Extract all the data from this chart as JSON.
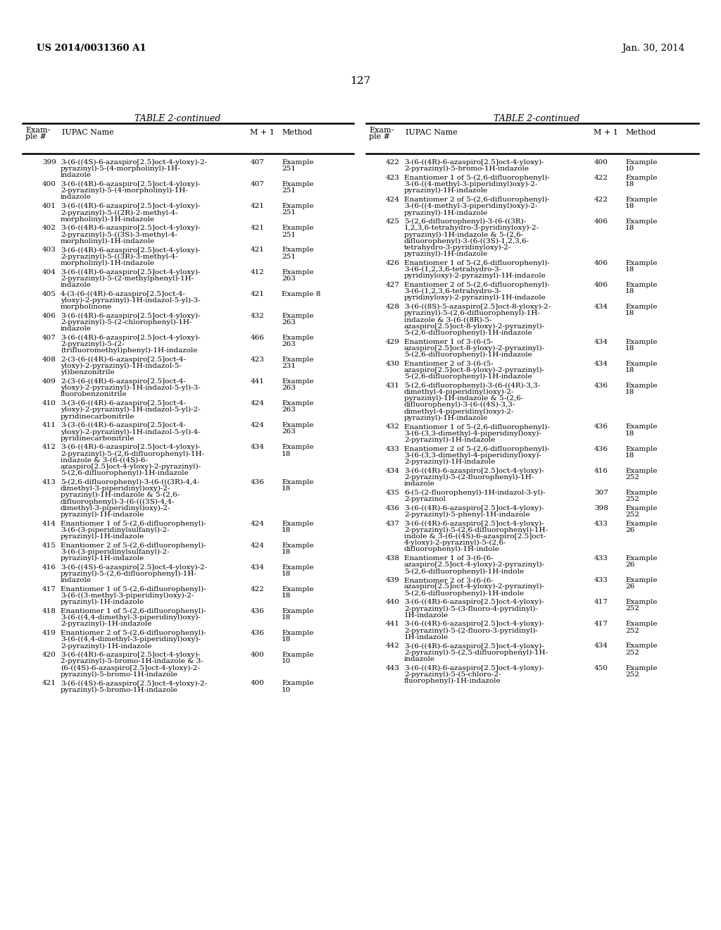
{
  "header_left": "US 2014/0031360 A1",
  "header_right": "Jan. 30, 2014",
  "page_number": "127",
  "table_title": "TABLE 2-continued",
  "left_table": [
    [
      "399",
      "3-(6-((4S)-6-azaspiro[2.5]oct-4-yloxy)-2-\npyrazinyl)-5-(4-morpholinyl)-1H-\nindazole",
      "407",
      "Example\n251"
    ],
    [
      "400",
      "3-(6-((4R)-6-azaspiro[2.5]oct-4-yloxy)-\n2-pyrazinyl)-5-(4-morpholinyl)-1H-\nindazole",
      "407",
      "Example\n251"
    ],
    [
      "401",
      "3-(6-((4R)-6-azaspiro[2.5]oct-4-yloxy)-\n2-pyrazinyl)-5-((2R)-2-methyl-4-\nmorpholinyl)-1H-indazole",
      "421",
      "Example\n251"
    ],
    [
      "402",
      "3-(6-((4R)-6-azaspiro[2.5]oct-4-yloxy)-\n2-pyrazinyl)-5-((3S)-3-methyl-4-\nmorpholinyl)-1H-indazole",
      "421",
      "Example\n251"
    ],
    [
      "403",
      "3-(6-((4R)-6-azaspiro[2.5]oct-4-yloxy)-\n2-pyrazinyl)-5-((3R)-3-methyl-4-\nmorpholinyl)-1H-indazole",
      "421",
      "Example\n251"
    ],
    [
      "404",
      "3-(6-((4R)-6-azaspiro[2.5]oct-4-yloxy)-\n2-pyrazinyl)-5-(2-methylphenyl)-1H-\nindazole",
      "412",
      "Example\n263"
    ],
    [
      "405",
      "4-(3-(6-((4R)-6-azaspiro[2.5]oct-4-\nyloxy)-2-pyrazinyl)-1H-indazol-5-yl)-3-\nmorpholinone",
      "421",
      "Example 8"
    ],
    [
      "406",
      "3-(6-((4R)-6-azaspiro[2.5]oct-4-yloxy)-\n2-pyrazinyl)-5-(2-chlorophenyl)-1H-\nindazole",
      "432",
      "Example\n263"
    ],
    [
      "407",
      "3-(6-((4R)-6-azaspiro[2.5]oct-4-yloxy)-\n2-pyrazinyl)-5-(2-\n(trifluoromethyl)phenyl)-1H-indazole",
      "466",
      "Example\n263"
    ],
    [
      "408",
      "2-(3-(6-((4R)-6-azaspiro[2.5]oct-4-\nyloxy)-2-pyrazinyl)-1H-indazol-5-\nyl)benzonitrile",
      "423",
      "Example\n231"
    ],
    [
      "409",
      "2-(3-(6-((4R)-6-azaspiro[2.5]oct-4-\nyloxy)-2-pyrazinyl)-1H-indazol-5-yl)-3-\nfluorobenzonitrile",
      "441",
      "Example\n263"
    ],
    [
      "410",
      "3-(3-(6-((4R)-6-azaspiro[2.5]oct-4-\nyloxy)-2-pyrazinyl)-1H-indazol-5-yl)-2-\npyridinecarbonitrile",
      "424",
      "Example\n263"
    ],
    [
      "411",
      "3-(3-(6-((4R)-6-azaspiro[2.5]oct-4-\nyloxy)-2-pyrazinyl)-1H-indazol-5-yl)-4-\npyridinecarbonitrile",
      "424",
      "Example\n263"
    ],
    [
      "412",
      "3-(6-((4R)-6-azaspiro[2.5]oct-4-yloxy)-\n2-pyrazinyl)-5-(2,6-difluorophenyl)-1H-\nindazole & 3-(6-((4S)-6-\nazaspiro[2.5]oct-4-yloxy)-2-pyrazinyl)-\n5-(2,6-difluorophenyl)-1H-indazole",
      "434",
      "Example\n18"
    ],
    [
      "413",
      "5-(2,6-difluorophenyl)-3-(6-(((3R)-4,4-\ndimethyl-3-piperidinyl)oxy)-2-\npyrazinyl)-1H-indazole & 5-(2,6-\ndifluorophenyl)-3-(6-(((3S)-4,4-\ndimethyl-3-piperidinyl)oxy)-2-\npyrazinyl)-1H-indazole",
      "436",
      "Example\n18"
    ],
    [
      "414",
      "Enantiomer 1 of 5-(2,6-difluorophenyl)-\n3-(6-(3-piperidinylsulfanyl)-2-\npyrazinyl)-1H-indazole",
      "424",
      "Example\n18"
    ],
    [
      "415",
      "Enantiomer 2 of 5-(2,6-difluorophenyl)-\n3-(6-(3-piperidinylsulfanyl)-2-\npyrazinyl)-1H-indazole",
      "424",
      "Example\n18"
    ],
    [
      "416",
      "3-(6-((4S)-6-azaspiro[2.5]oct-4-yloxy)-2-\npyrazinyl)-5-(2,6-difluorophenyl)-1H-\nindazole",
      "434",
      "Example\n18"
    ],
    [
      "417",
      "Enantiomer 1 of 5-(2,6-difluorophenyl)-\n3-(6-((3-methyl-3-piperidinyl)oxy)-2-\npyrazinyl)-1H-indazole",
      "422",
      "Example\n18"
    ],
    [
      "418",
      "Enantiomer 1 of 5-(2,6-difluorophenyl)-\n3-(6-((4,4-dimethyl-3-piperidinyl)oxy)-\n2-pyrazinyl)-1H-indazole",
      "436",
      "Example\n18"
    ],
    [
      "419",
      "Enantiomer 2 of 5-(2,6-difluorophenyl)-\n3-(6-((4,4-dimethyl-3-piperidinyl)oxy)-\n2-pyrazinyl)-1H-indazole",
      "436",
      "Example\n18"
    ],
    [
      "420",
      "3-(6-((4R)-6-azaspiro[2.5]oct-4-yloxy)-\n2-pyrazinyl)-5-bromo-1H-indazole & 3-\n(6-((4S)-6-azaspiro[2.5]oct-4-yloxy)-2-\npyrazinyl)-5-bromo-1H-indazole",
      "400",
      "Example\n10"
    ],
    [
      "421",
      "3-(6-((4S)-6-azaspiro[2.5]oct-4-yloxy)-2-\npyrazinyl)-5-bromo-1H-indazole",
      "400",
      "Example\n10"
    ]
  ],
  "right_table": [
    [
      "422",
      "3-(6-((4R)-6-azaspiro[2.5]oct-4-yloxy)-\n2-pyrazinyl)-5-bromo-1H-indazole",
      "400",
      "Example\n10"
    ],
    [
      "423",
      "Enantiomer 1 of 5-(2,6-difluorophenyl)-\n3-(6-((4-methyl-3-piperidinyl)oxy)-2-\npyrazinyl)-1H-indazole",
      "422",
      "Example\n18"
    ],
    [
      "424",
      "Enantiomer 2 of 5-(2,6-difluorophenyl)-\n3-(6-((4-methyl-3-piperidinyl)oxy)-2-\npyrazinyl)-1H-indazole",
      "422",
      "Example\n18"
    ],
    [
      "425",
      "5-(2,6-difluorophenyl)-3-(6-((3R)-\n1,2,3,6-tetrahydro-3-pyridinyloxy)-2-\npyrazinyl)-1H-indazole & 5-(2,6-\ndifluorophenyl)-3-(6-((3S)-1,2,3,6-\ntetrahydro-3-pyridinyloxy)-2-\npyrazinyl)-1H-indazole",
      "406",
      "Example\n18"
    ],
    [
      "426",
      "Enantiomer 1 of 5-(2,6-difluorophenyl)-\n3-(6-(1,2,3,6-tetrahydro-3-\npyridinyloxy)-2-pyrazinyl)-1H-indazole",
      "406",
      "Example\n18"
    ],
    [
      "427",
      "Enantiomer 2 of 5-(2,6-difluorophenyl)-\n3-(6-(1,2,3,6-tetrahydro-3-\npyridinyloxy)-2-pyrazinyl)-1H-indazole",
      "406",
      "Example\n18"
    ],
    [
      "428",
      "3-(6-((8S)-5-azaspiro[2.5]oct-8-yloxy)-2-\npyrazinyl)-5-(2,6-difluorophenyl)-1H-\nindazole & 3-(6-((8R)-5-\nazaspiro[2.5]oct-8-yloxy)-2-pyrazinyl)-\n5-(2,6-difluorophenyl)-1H-indazole",
      "434",
      "Example\n18"
    ],
    [
      "429",
      "Enantiomer 1 of 3-(6-(5-\nazaspiro[2.5]oct-8-yloxy)-2-pyrazinyl)-\n5-(2,6-difluorophenyl)-1H-indazole",
      "434",
      "Example\n18"
    ],
    [
      "430",
      "Enantiomer 2 of 3-(6-(5-\nazaspiro[2.5]oct-8-yloxy)-2-pyrazinyl)-\n5-(2,6-difluorophenyl)-1H-indazole",
      "434",
      "Example\n18"
    ],
    [
      "431",
      "5-(2,6-difluorophenyl)-3-(6-((4R)-3,3-\ndimethyl-4-piperidinyl)oxy)-2-\npyrazinyl)-1H-indazole & 5-(2,6-\ndifluorophenyl)-3-(6-((4S)-3,3-\ndimethyl-4-piperidinyl)oxy)-2-\npyrazinyl)-1H-indazole",
      "436",
      "Example\n18"
    ],
    [
      "432",
      "Enantiomer 1 of 5-(2,6-difluorophenyl)-\n3-(6-(3,3-dimethyl-4-piperidinyl)oxy)-\n2-pyrazinyl)-1H-indazole",
      "436",
      "Example\n18"
    ],
    [
      "433",
      "Enantiomer 2 of 5-(2,6-difluorophenyl)-\n3-(6-(3,3-dimethyl-4-piperidinyl)oxy)-\n2-pyrazinyl)-1H-indazole",
      "436",
      "Example\n18"
    ],
    [
      "434",
      "3-(6-((4R)-6-azaspiro[2.5]oct-4-yloxy)-\n2-pyrazinyl)-5-(2-fluorophenyl)-1H-\nindazole",
      "416",
      "Example\n252"
    ],
    [
      "435",
      "6-(5-(2-fluorophenyl)-1H-indazol-3-yl)-\n2-pyrazinol",
      "307",
      "Example\n252"
    ],
    [
      "436",
      "3-(6-((4R)-6-azaspiro[2.5]oct-4-yloxy)-\n2-pyrazinyl)-5-phenyl-1H-indazole",
      "398",
      "Example\n252"
    ],
    [
      "437",
      "3-(6-((4R)-6-azaspiro[2.5]oct-4-yloxy)-\n2-pyrazinyl)-5-(2,6-difluorophenyl)-1H-\nindole & 3-(6-((4S)-6-azaspiro[2.5]oct-\n4-yloxy)-2-pyrazinyl)-5-(2,6-\ndifluorophenyl)-1H-indole",
      "433",
      "Example\n26"
    ],
    [
      "438",
      "Enantiomer 1 of 3-(6-(6-\nazaspiro[2.5]oct-4-yloxy)-2-pyrazinyl)-\n5-(2,6-difluorophenyl)-1H-indole",
      "433",
      "Example\n26"
    ],
    [
      "439",
      "Enantiomer 2 of 3-(6-(6-\nazaspiro[2.5]oct-4-yloxy)-2-pyrazinyl)-\n5-(2,6-difluorophenyl)-1H-indole",
      "433",
      "Example\n26"
    ],
    [
      "440",
      "3-(6-((4R)-6-azaspiro[2.5]oct-4-yloxy)-\n2-pyrazinyl)-5-(3-fluoro-4-pyridinyl)-\n1H-indazole",
      "417",
      "Example\n252"
    ],
    [
      "441",
      "3-(6-((4R)-6-azaspiro[2.5]oct-4-yloxy)-\n2-pyrazinyl)-5-(2-fluoro-3-pyridinyl)-\n1H-indazole",
      "417",
      "Example\n252"
    ],
    [
      "442",
      "3-(6-((4R)-6-azaspiro[2.5]oct-4-yloxy)-\n2-pyrazinyl)-5-(2,5-difluorophenyl)-1H-\nindazole",
      "434",
      "Example\n252"
    ],
    [
      "443",
      "3-(6-((4R)-6-azaspiro[2.5]oct-4-yloxy)-\n2-pyrazinyl)-5-(5-chloro-2-\nfluorophenyl)-1H-indazole",
      "450",
      "Example\n252"
    ]
  ],
  "bg_color": "#ffffff",
  "text_color": "#000000"
}
